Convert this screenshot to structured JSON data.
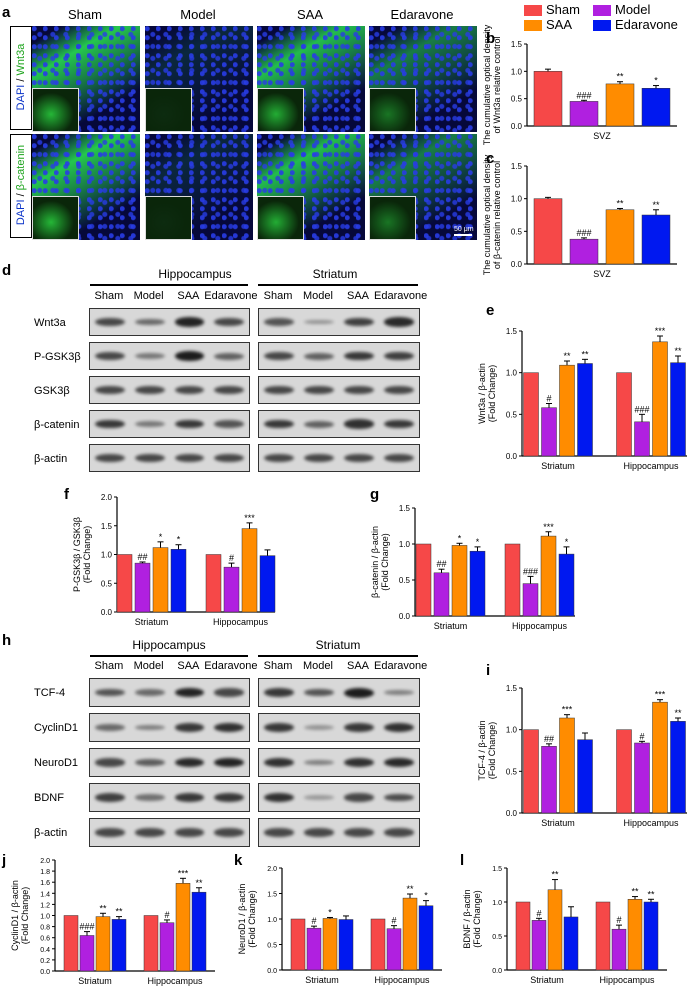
{
  "panels": {
    "a": "a",
    "b": "b",
    "c": "c",
    "d": "d",
    "e": "e",
    "f": "f",
    "g": "g",
    "h": "h",
    "i": "i",
    "j": "j",
    "k": "k",
    "l": "l"
  },
  "if_panel": {
    "columns": [
      "Sham",
      "Model",
      "SAA",
      "Edaravone"
    ],
    "row1_label_dapi": "DAPI",
    "row1_label_sep": " / ",
    "row1_label_marker": "Wnt3a",
    "row2_label_dapi": "DAPI",
    "row2_label_sep": " / ",
    "row2_label_marker": "β-catenin",
    "scalebar": "50 μm"
  },
  "legend": {
    "items": [
      {
        "label": "Sham",
        "color": "#f64848"
      },
      {
        "label": "SAA",
        "color": "#ff8c00"
      },
      {
        "label": "Model",
        "color": "#b020e0"
      },
      {
        "label": "Edaravone",
        "color": "#0018f0"
      }
    ]
  },
  "colors": {
    "sham": "#f64848",
    "model": "#b020e0",
    "saa": "#ff8c00",
    "edaravone": "#0018f0"
  },
  "blot_d": {
    "group_left": "Hippocampus",
    "group_right": "Striatum",
    "lanes": [
      "Sham",
      "Model",
      "SAA",
      "Edaravone"
    ],
    "rows": [
      "Wnt3a",
      "P-GSK3β",
      "GSK3β",
      "β-catenin",
      "β-actin"
    ]
  },
  "blot_h": {
    "group_left": "Hippocampus",
    "group_right": "Striatum",
    "lanes": [
      "Sham",
      "Model",
      "SAA",
      "Edaravone"
    ],
    "rows": [
      "TCF-4",
      "CyclinD1",
      "NeuroD1",
      "BDNF",
      "β-actin"
    ]
  },
  "chart_data": [
    {
      "id": "b",
      "type": "bar",
      "ylabel": "The cumulative optical density of Wnt3a relative control",
      "categories": [
        "SVZ"
      ],
      "series": [
        {
          "name": "Sham",
          "values": [
            1.0
          ],
          "err": [
            0.04
          ],
          "sig": ""
        },
        {
          "name": "Model",
          "values": [
            0.45
          ],
          "err": [
            0.02
          ],
          "sig": "###"
        },
        {
          "name": "SAA",
          "values": [
            0.77
          ],
          "err": [
            0.04
          ],
          "sig": "**"
        },
        {
          "name": "Edaravone",
          "values": [
            0.69
          ],
          "err": [
            0.05
          ],
          "sig": "*"
        }
      ],
      "ylim": [
        0,
        1.5
      ],
      "yticks": [
        "0.0",
        "0.5",
        "1.0",
        "1.5"
      ]
    },
    {
      "id": "c",
      "type": "bar",
      "ylabel": "The cumulative optical density of β-catenin relative control",
      "categories": [
        "SVZ"
      ],
      "series": [
        {
          "name": "Sham",
          "values": [
            1.0
          ],
          "err": [
            0.02
          ],
          "sig": ""
        },
        {
          "name": "Model",
          "values": [
            0.38
          ],
          "err": [
            0.02
          ],
          "sig": "###"
        },
        {
          "name": "SAA",
          "values": [
            0.83
          ],
          "err": [
            0.02
          ],
          "sig": "**"
        },
        {
          "name": "Edaravone",
          "values": [
            0.75
          ],
          "err": [
            0.08
          ],
          "sig": "**"
        }
      ],
      "ylim": [
        0,
        1.5
      ],
      "yticks": [
        "0.0",
        "0.5",
        "1.0",
        "1.5"
      ]
    },
    {
      "id": "e",
      "type": "bar",
      "ylabel": "Wnt3a / β-actin (Fold Change)",
      "categories": [
        "Striatum",
        "Hippocampus"
      ],
      "series": [
        {
          "name": "Sham",
          "values": [
            1.0,
            1.0
          ],
          "err": [
            0,
            0
          ],
          "sig": [
            "",
            ""
          ]
        },
        {
          "name": "Model",
          "values": [
            0.58,
            0.41
          ],
          "err": [
            0.05,
            0.09
          ],
          "sig": [
            "#",
            "###"
          ]
        },
        {
          "name": "SAA",
          "values": [
            1.09,
            1.37
          ],
          "err": [
            0.05,
            0.07
          ],
          "sig": [
            "**",
            "***"
          ]
        },
        {
          "name": "Edaravone",
          "values": [
            1.11,
            1.12
          ],
          "err": [
            0.05,
            0.08
          ],
          "sig": [
            "**",
            "**"
          ]
        }
      ],
      "ylim": [
        0,
        1.5
      ],
      "yticks": [
        "0.0",
        "0.5",
        "1.0",
        "1.5"
      ]
    },
    {
      "id": "f",
      "type": "bar",
      "ylabel": "P-GSK3β / GSK3β (Fold Change)",
      "categories": [
        "Striatum",
        "Hippocampus"
      ],
      "series": [
        {
          "name": "Sham",
          "values": [
            1.0,
            1.0
          ],
          "err": [
            0,
            0
          ],
          "sig": [
            "",
            ""
          ]
        },
        {
          "name": "Model",
          "values": [
            0.85,
            0.78
          ],
          "err": [
            0.02,
            0.07
          ],
          "sig": [
            "##",
            "#"
          ]
        },
        {
          "name": "SAA",
          "values": [
            1.12,
            1.45
          ],
          "err": [
            0.1,
            0.1
          ],
          "sig": [
            "*",
            "***"
          ]
        },
        {
          "name": "Edaravone",
          "values": [
            1.09,
            0.98
          ],
          "err": [
            0.08,
            0.1
          ],
          "sig": [
            "*",
            ""
          ]
        }
      ],
      "ylim": [
        0,
        2.0
      ],
      "yticks": [
        "0.0",
        "0.5",
        "1.0",
        "1.5",
        "2.0"
      ]
    },
    {
      "id": "g",
      "type": "bar",
      "ylabel": "β-catenin / β-actin (Fold Change)",
      "categories": [
        "Striatum",
        "Hippocampus"
      ],
      "series": [
        {
          "name": "Sham",
          "values": [
            1.0,
            1.0
          ],
          "err": [
            0,
            0
          ],
          "sig": [
            "",
            ""
          ]
        },
        {
          "name": "Model",
          "values": [
            0.6,
            0.45
          ],
          "err": [
            0.05,
            0.1
          ],
          "sig": [
            "##",
            "###"
          ]
        },
        {
          "name": "SAA",
          "values": [
            0.98,
            1.11
          ],
          "err": [
            0.03,
            0.06
          ],
          "sig": [
            "*",
            "***"
          ]
        },
        {
          "name": "Edaravone",
          "values": [
            0.9,
            0.86
          ],
          "err": [
            0.06,
            0.1
          ],
          "sig": [
            "*",
            "*"
          ]
        }
      ],
      "ylim": [
        0,
        1.5
      ],
      "yticks": [
        "0.0",
        "0.5",
        "1.0",
        "1.5"
      ]
    },
    {
      "id": "i",
      "type": "bar",
      "ylabel": "TCF-4 / β-actin (Fold Change)",
      "categories": [
        "Striatum",
        "Hippocampus"
      ],
      "series": [
        {
          "name": "Sham",
          "values": [
            1.0,
            1.0
          ],
          "err": [
            0,
            0
          ],
          "sig": [
            "",
            ""
          ]
        },
        {
          "name": "Model",
          "values": [
            0.8,
            0.84
          ],
          "err": [
            0.03,
            0.02
          ],
          "sig": [
            "##",
            "#"
          ]
        },
        {
          "name": "SAA",
          "values": [
            1.14,
            1.33
          ],
          "err": [
            0.04,
            0.03
          ],
          "sig": [
            "***",
            "***"
          ]
        },
        {
          "name": "Edaravone",
          "values": [
            0.88,
            1.1
          ],
          "err": [
            0.08,
            0.04
          ],
          "sig": [
            "",
            "**"
          ]
        }
      ],
      "ylim": [
        0,
        1.5
      ],
      "yticks": [
        "0.0",
        "0.5",
        "1.0",
        "1.5"
      ]
    },
    {
      "id": "j",
      "type": "bar",
      "ylabel": "CyclinD1 / β-actin (Fold Change)",
      "categories": [
        "Striatum",
        "Hippocampus"
      ],
      "series": [
        {
          "name": "Sham",
          "values": [
            1.0,
            1.0
          ],
          "err": [
            0,
            0
          ],
          "sig": [
            "",
            ""
          ]
        },
        {
          "name": "Model",
          "values": [
            0.64,
            0.87
          ],
          "err": [
            0.07,
            0.05
          ],
          "sig": [
            "###",
            "#"
          ]
        },
        {
          "name": "SAA",
          "values": [
            0.98,
            1.58
          ],
          "err": [
            0.06,
            0.09
          ],
          "sig": [
            "**",
            "***"
          ]
        },
        {
          "name": "Edaravone",
          "values": [
            0.93,
            1.42
          ],
          "err": [
            0.05,
            0.08
          ],
          "sig": [
            "**",
            "**"
          ]
        }
      ],
      "ylim": [
        0,
        2.0
      ],
      "yticks": [
        "0.0",
        "0.2",
        "0.4",
        "0.6",
        "0.8",
        "1.0",
        "1.2",
        "1.4",
        "1.6",
        "1.8",
        "2.0"
      ]
    },
    {
      "id": "k",
      "type": "bar",
      "ylabel": "NeuroD1 / β-actin (Fold Change)",
      "categories": [
        "Striatum",
        "Hippocampus"
      ],
      "series": [
        {
          "name": "Sham",
          "values": [
            1.0,
            1.0
          ],
          "err": [
            0,
            0
          ],
          "sig": [
            "",
            ""
          ]
        },
        {
          "name": "Model",
          "values": [
            0.82,
            0.81
          ],
          "err": [
            0.04,
            0.06
          ],
          "sig": [
            "#",
            "#"
          ]
        },
        {
          "name": "SAA",
          "values": [
            1.01,
            1.41
          ],
          "err": [
            0.02,
            0.08
          ],
          "sig": [
            "*",
            "**"
          ]
        },
        {
          "name": "Edaravone",
          "values": [
            0.99,
            1.26
          ],
          "err": [
            0.07,
            0.1
          ],
          "sig": [
            "",
            "*"
          ]
        }
      ],
      "ylim": [
        0,
        2.0
      ],
      "yticks": [
        "0.0",
        "0.5",
        "1.0",
        "1.5",
        "2.0"
      ]
    },
    {
      "id": "l",
      "type": "bar",
      "ylabel": "BDNF / β-actin (Fold Change)",
      "categories": [
        "Striatum",
        "Hippocampus"
      ],
      "series": [
        {
          "name": "Sham",
          "values": [
            1.0,
            1.0
          ],
          "err": [
            0,
            0
          ],
          "sig": [
            "",
            ""
          ]
        },
        {
          "name": "Model",
          "values": [
            0.73,
            0.6
          ],
          "err": [
            0.03,
            0.06
          ],
          "sig": [
            "#",
            "#"
          ]
        },
        {
          "name": "SAA",
          "values": [
            1.18,
            1.04
          ],
          "err": [
            0.15,
            0.04
          ],
          "sig": [
            "**",
            "**"
          ]
        },
        {
          "name": "Edaravone",
          "values": [
            0.78,
            1.0
          ],
          "err": [
            0.15,
            0.04
          ],
          "sig": [
            "",
            "**"
          ]
        }
      ],
      "ylim": [
        0,
        1.5
      ],
      "yticks": [
        "0.0",
        "0.5",
        "1.0",
        "1.5"
      ]
    }
  ]
}
